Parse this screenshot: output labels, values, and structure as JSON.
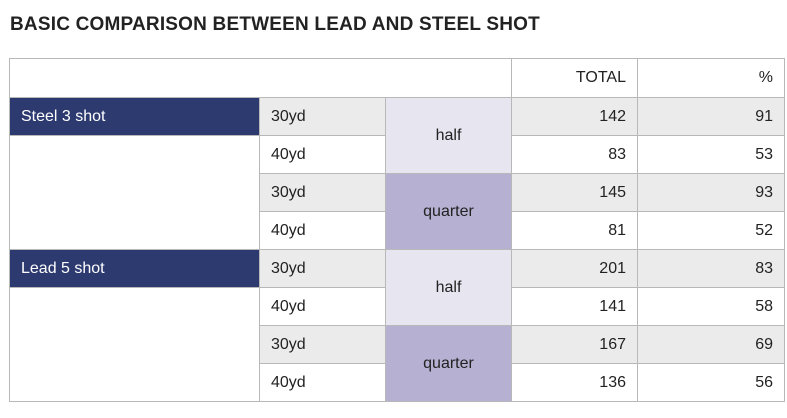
{
  "title": "BASIC COMPARISON BETWEEN LEAD AND STEEL SHOT",
  "header": {
    "total": "TOTAL",
    "percent": "%"
  },
  "groups": [
    {
      "shot": "Steel 3 shot",
      "chokes": [
        {
          "choke": "half",
          "rows": [
            {
              "distance": "30yd",
              "total": "142",
              "percent": "91"
            },
            {
              "distance": "40yd",
              "total": "83",
              "percent": "53"
            }
          ]
        },
        {
          "choke": "quarter",
          "rows": [
            {
              "distance": "30yd",
              "total": "145",
              "percent": "93"
            },
            {
              "distance": "40yd",
              "total": "81",
              "percent": "52"
            }
          ]
        }
      ]
    },
    {
      "shot": "Lead 5 shot",
      "chokes": [
        {
          "choke": "half",
          "rows": [
            {
              "distance": "30yd",
              "total": "201",
              "percent": "83"
            },
            {
              "distance": "40yd",
              "total": "141",
              "percent": "58"
            }
          ]
        },
        {
          "choke": "quarter",
          "rows": [
            {
              "distance": "30yd",
              "total": "167",
              "percent": "69"
            },
            {
              "distance": "40yd",
              "total": "136",
              "percent": "56"
            }
          ]
        }
      ]
    }
  ],
  "colors": {
    "shot_label_bg": "#2d3a70",
    "half_bg": "#e7e5f0",
    "quarter_bg": "#b6b1d2",
    "gray_row_bg": "#ebebeb"
  }
}
